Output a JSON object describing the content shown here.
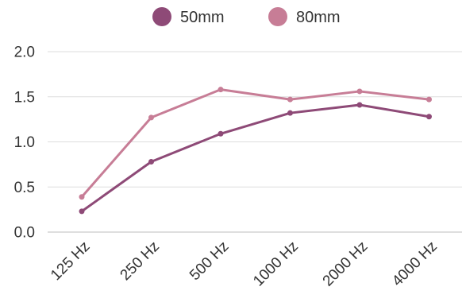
{
  "chart_data": {
    "type": "line",
    "categories": [
      "125 Hz",
      "250 Hz",
      "500 Hz",
      "1000 Hz",
      "2000 Hz",
      "4000 Hz"
    ],
    "series": [
      {
        "name": "50mm",
        "values": [
          0.23,
          0.78,
          1.09,
          1.32,
          1.41,
          1.28
        ],
        "color": "#8e4a77"
      },
      {
        "name": "80mm",
        "values": [
          0.39,
          1.27,
          1.58,
          1.47,
          1.56,
          1.47
        ],
        "color": "#c77d96"
      }
    ],
    "title": "",
    "xlabel": "",
    "ylabel": "",
    "ylim": [
      0,
      2.0
    ],
    "yticks": [
      "0.0",
      "0.5",
      "1.0",
      "1.5",
      "2.0"
    ],
    "grid": true,
    "legend": "top-center"
  }
}
